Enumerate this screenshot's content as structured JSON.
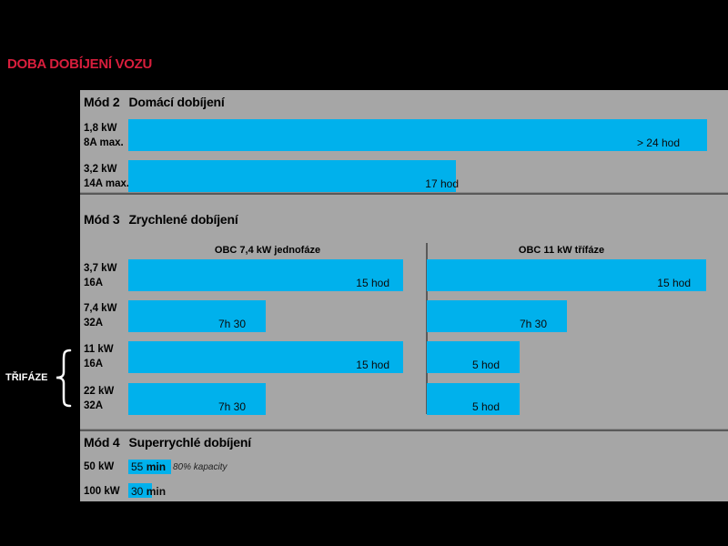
{
  "title": "DOBA DOBÍJENÍ VOZU",
  "side_label": "TŘIFÁZE",
  "colors": {
    "title": "#d81e3c",
    "bar": "#00b1ec",
    "panel": "#a6a6a6",
    "background": "#000000"
  },
  "mode2": {
    "mode": "Mód 2",
    "name": "Domácí dobíjení",
    "rows": [
      {
        "power": "1,8 kW",
        "current": "8A max.",
        "label": "> 24 hod"
      },
      {
        "power": "3,2 kW",
        "current": "14A max.",
        "label": "17 hod"
      }
    ]
  },
  "mode3": {
    "mode": "Mód 3",
    "name": "Zrychlené dobíjení",
    "col1": "OBC 7,4 kW jednofáze",
    "col2": "OBC 11 kW třífáze",
    "rows": [
      {
        "power": "3,7 kW",
        "current": "16A",
        "c1": "15 hod",
        "c2": "15 hod"
      },
      {
        "power": "7,4 kW",
        "current": "32A",
        "c1": "7h 30",
        "c2": "7h 30"
      },
      {
        "power": "11 kW",
        "current": "16A",
        "c1": "15 hod",
        "c2": "5 hod"
      },
      {
        "power": "22 kW",
        "current": "32A",
        "c1": "7h 30",
        "c2": "5 hod"
      }
    ]
  },
  "mode4": {
    "mode": "Mód 4",
    "name": "Superrychlé dobíjení",
    "rows": [
      {
        "power": "50 kW",
        "num": "55",
        "unit": "min",
        "note": "80% kapacity"
      },
      {
        "power": "100 kW",
        "num": "30",
        "unit": "min",
        "note": ""
      }
    ]
  },
  "chart_data": {
    "type": "bar",
    "title": "DOBA DOBÍJENÍ VOZU",
    "unit": "hours",
    "groups": [
      {
        "mode": "Mód 2",
        "name": "Domácí dobíjení",
        "series": [
          {
            "name": "",
            "categories": [
              "1,8 kW 8A max.",
              "3,2 kW 14A max."
            ],
            "values": [
              30,
              17
            ],
            "labels": [
              "> 24 hod",
              "17 hod"
            ]
          }
        ]
      },
      {
        "mode": "Mód 3",
        "name": "Zrychlené dobíjení",
        "categories": [
          "3,7 kW 16A",
          "7,4 kW 32A",
          "11 kW 16A",
          "22 kW 32A"
        ],
        "series": [
          {
            "name": "OBC 7,4 kW jednofáze",
            "values": [
              15,
              7.5,
              15,
              7.5
            ],
            "labels": [
              "15 hod",
              "7h 30",
              "15 hod",
              "7h 30"
            ]
          },
          {
            "name": "OBC 11 kW třífáze",
            "values": [
              15,
              7.5,
              5,
              5
            ],
            "labels": [
              "15 hod",
              "7h 30",
              "5 hod",
              "5 hod"
            ]
          }
        ]
      },
      {
        "mode": "Mód 4",
        "name": "Superrychlé dobíjení",
        "series": [
          {
            "name": "",
            "categories": [
              "50 kW",
              "100 kW"
            ],
            "values": [
              0.917,
              0.5
            ],
            "labels": [
              "55 min",
              "30 min"
            ]
          }
        ]
      }
    ]
  }
}
